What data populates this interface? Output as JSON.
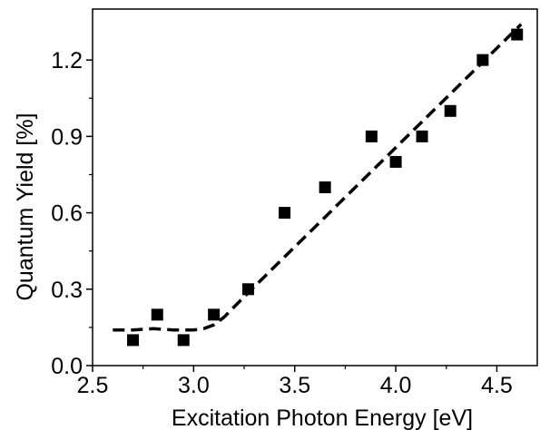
{
  "chart_data": {
    "type": "scatter",
    "xlabel": "Excitation Photon Energy [eV]",
    "ylabel": "Quantum Yield [%]",
    "xlim": [
      2.5,
      4.7
    ],
    "ylim": [
      0.0,
      1.4
    ],
    "x_ticks": [
      2.5,
      3.0,
      3.5,
      4.0,
      4.5
    ],
    "x_tick_labels": [
      "2.5",
      "3.0",
      "3.5",
      "4.0",
      "4.5"
    ],
    "y_ticks": [
      0.0,
      0.3,
      0.6,
      0.9,
      1.2
    ],
    "y_tick_labels": [
      "0.0",
      "0.3",
      "0.6",
      "0.9",
      "1.2"
    ],
    "grid": false,
    "series": [
      {
        "marker": "square",
        "color": "#000000",
        "x": [
          2.7,
          2.82,
          2.95,
          3.1,
          3.27,
          3.45,
          3.65,
          3.88,
          4.0,
          4.13,
          4.27,
          4.43,
          4.6
        ],
        "y": [
          0.1,
          0.2,
          0.1,
          0.2,
          0.3,
          0.6,
          0.7,
          0.9,
          0.8,
          0.9,
          1.0,
          1.2,
          1.3
        ]
      }
    ],
    "fit_line": {
      "style": "dashed",
      "color": "#000000",
      "x": [
        2.6,
        2.7,
        2.8,
        2.9,
        3.0,
        3.05,
        3.1,
        3.15,
        3.2,
        3.3,
        4.62
      ],
      "y": [
        0.14,
        0.14,
        0.145,
        0.14,
        0.14,
        0.145,
        0.16,
        0.19,
        0.23,
        0.31,
        1.34
      ]
    }
  }
}
